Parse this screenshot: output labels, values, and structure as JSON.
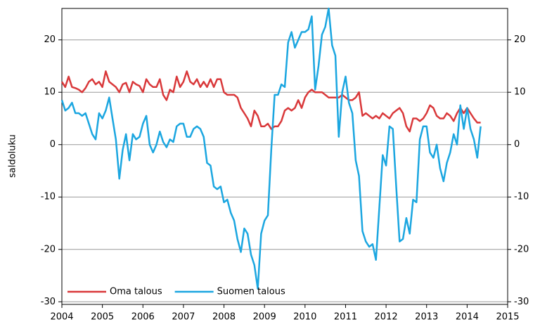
{
  "chart_data": {
    "type": "line",
    "y_label": "saldoluku",
    "x": [
      2004,
      2004.083,
      2004.167,
      2004.25,
      2004.333,
      2004.417,
      2004.5,
      2004.583,
      2004.667,
      2004.75,
      2004.833,
      2004.917,
      2005,
      2005.083,
      2005.167,
      2005.25,
      2005.333,
      2005.417,
      2005.5,
      2005.583,
      2005.667,
      2005.75,
      2005.833,
      2005.917,
      2006,
      2006.083,
      2006.167,
      2006.25,
      2006.333,
      2006.417,
      2006.5,
      2006.583,
      2006.667,
      2006.75,
      2006.833,
      2006.917,
      2007,
      2007.083,
      2007.167,
      2007.25,
      2007.333,
      2007.417,
      2007.5,
      2007.583,
      2007.667,
      2007.75,
      2007.833,
      2007.917,
      2008,
      2008.083,
      2008.167,
      2008.25,
      2008.333,
      2008.417,
      2008.5,
      2008.583,
      2008.667,
      2008.75,
      2008.833,
      2008.917,
      2009,
      2009.083,
      2009.167,
      2009.25,
      2009.333,
      2009.417,
      2009.5,
      2009.583,
      2009.667,
      2009.75,
      2009.833,
      2009.917,
      2010,
      2010.083,
      2010.167,
      2010.25,
      2010.333,
      2010.417,
      2010.5,
      2010.583,
      2010.667,
      2010.75,
      2010.833,
      2010.917,
      2011,
      2011.083,
      2011.167,
      2011.25,
      2011.333,
      2011.417,
      2011.5,
      2011.583,
      2011.667,
      2011.75,
      2011.833,
      2011.917,
      2012,
      2012.083,
      2012.167,
      2012.25,
      2012.333,
      2012.417,
      2012.5,
      2012.583,
      2012.667,
      2012.75,
      2012.833,
      2012.917,
      2013,
      2013.083,
      2013.167,
      2013.25,
      2013.333,
      2013.417,
      2013.5,
      2013.583,
      2013.667,
      2013.75,
      2013.833,
      2013.917,
      2014,
      2014.083,
      2014.167,
      2014.25,
      2014.333
    ],
    "series": [
      {
        "name": "Oma talous",
        "color": "#d9383a",
        "values": [
          12,
          11,
          13,
          11,
          10.8,
          10.5,
          10,
          10.8,
          12,
          12.5,
          11.5,
          12,
          11,
          14,
          12,
          11.5,
          11,
          10,
          11.5,
          11.8,
          10,
          12,
          11.5,
          11.2,
          10,
          12.5,
          11.5,
          11,
          11,
          12.5,
          9.5,
          8.5,
          10.5,
          10,
          13,
          11,
          12,
          14,
          12,
          11.5,
          12.5,
          11,
          12,
          11,
          12.5,
          11,
          12.5,
          12.5,
          10,
          9.5,
          9.5,
          9.5,
          9,
          7,
          6,
          5,
          3.5,
          6.5,
          5.5,
          3.5,
          3.5,
          4,
          3,
          3.5,
          3.5,
          4.5,
          6.5,
          7,
          6.5,
          7,
          8.5,
          7,
          9,
          10,
          10.5,
          10,
          10,
          10,
          9.5,
          9,
          9,
          9,
          9,
          9.5,
          9,
          8.5,
          8.5,
          9,
          10,
          5.5,
          6,
          5.5,
          5,
          5.5,
          5,
          6,
          5.5,
          5,
          6,
          6.5,
          7,
          6,
          3.5,
          2.5,
          5,
          5,
          4.5,
          5,
          6,
          7.5,
          7,
          5.5,
          5,
          5,
          6,
          5.5,
          4.5,
          6,
          7,
          6,
          7,
          6,
          5,
          4.2,
          4.2
        ]
      },
      {
        "name": "Suomen talous",
        "color": "#1ba6e0",
        "values": [
          8.5,
          6.5,
          7,
          8,
          6,
          6,
          5.5,
          6,
          4,
          2,
          1,
          6,
          5,
          6.5,
          9,
          5,
          1,
          -6.5,
          -1,
          2,
          -3,
          2,
          1,
          1.5,
          4,
          5.5,
          0,
          -1.5,
          0,
          2.5,
          0.5,
          -0.5,
          1,
          0.5,
          3.5,
          4,
          4,
          1.5,
          1.5,
          3,
          3.5,
          3,
          1.5,
          -3.5,
          -4,
          -8,
          -8.5,
          -8,
          -11,
          -10.5,
          -13,
          -14.5,
          -18,
          -20.5,
          -16,
          -17,
          -21,
          -23,
          -27.5,
          -17,
          -14.5,
          -13.5,
          -1,
          9.5,
          9.5,
          11.5,
          11,
          19.5,
          21.5,
          18.5,
          20,
          21.5,
          21.5,
          22,
          24.5,
          10.5,
          15,
          21,
          22.5,
          26,
          19,
          17,
          1.5,
          10,
          13,
          8,
          6,
          -3,
          -6,
          -16.5,
          -18.5,
          -19.5,
          -19,
          -22,
          -12,
          -2,
          -4,
          3.5,
          3,
          -8,
          -18.5,
          -18,
          -14,
          -17,
          -10.5,
          -11,
          1,
          3.5,
          3.5,
          -1.5,
          -2.5,
          0,
          -4.5,
          -7,
          -3.5,
          -1.5,
          2,
          0,
          7.5,
          3,
          7,
          3,
          1,
          -2.5,
          3.5
        ]
      }
    ],
    "xlim": [
      2004,
      2015
    ],
    "xticks": [
      2004,
      2005,
      2006,
      2007,
      2008,
      2009,
      2010,
      2011,
      2012,
      2013,
      2014,
      2015
    ],
    "ylim": [
      -30.5,
      26
    ],
    "yticks": [
      -30,
      -20,
      -10,
      0,
      10,
      20
    ],
    "grid": true,
    "legend": "lower left"
  }
}
